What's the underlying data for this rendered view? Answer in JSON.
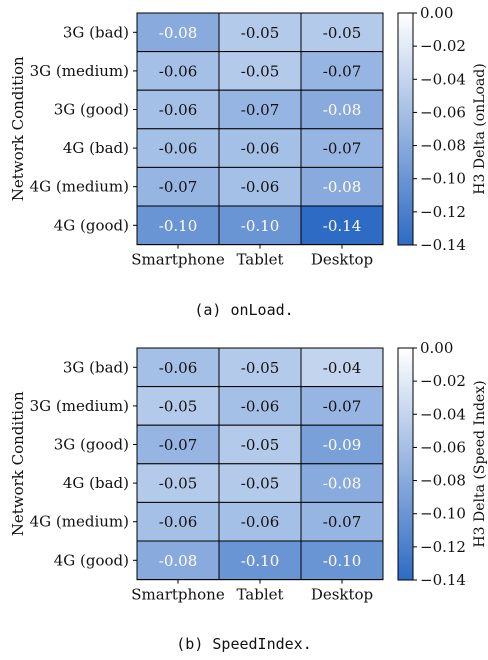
{
  "chart_data": [
    {
      "type": "heatmap",
      "caption": "(a) onLoad.",
      "ylabel": "Network Condition",
      "colorbar_label": "H3 Delta (onLoad)",
      "rows": [
        "3G (bad)",
        "3G (medium)",
        "3G (good)",
        "4G (bad)",
        "4G (medium)",
        "4G (good)"
      ],
      "columns": [
        "Smartphone",
        "Tablet",
        "Desktop"
      ],
      "values": [
        [
          -0.08,
          -0.05,
          -0.05
        ],
        [
          -0.06,
          -0.05,
          -0.07
        ],
        [
          -0.06,
          -0.07,
          -0.08
        ],
        [
          -0.06,
          -0.06,
          -0.07
        ],
        [
          -0.07,
          -0.06,
          -0.08
        ],
        [
          -0.1,
          -0.1,
          -0.14
        ]
      ],
      "labels": [
        [
          "-0.08",
          "-0.05",
          "-0.05"
        ],
        [
          "-0.06",
          "-0.05",
          "-0.07"
        ],
        [
          "-0.06",
          "-0.07",
          "-0.08"
        ],
        [
          "-0.06",
          "-0.06",
          "-0.07"
        ],
        [
          "-0.07",
          "-0.06",
          "-0.08"
        ],
        [
          "-0.10",
          "-0.10",
          "-0.14"
        ]
      ],
      "colorbar_range": [
        -0.14,
        0.0
      ],
      "colorbar_ticks": [
        0.0,
        -0.02,
        -0.04,
        -0.06,
        -0.08,
        -0.1,
        -0.12,
        -0.14
      ],
      "colorbar_tick_labels": [
        "0.00",
        "−0.02",
        "−0.04",
        "−0.06",
        "−0.08",
        "−0.10",
        "−0.12",
        "−0.14"
      ],
      "colormap": {
        "high": "#ffffff",
        "low": "#2e6bc4"
      },
      "legend": "right"
    },
    {
      "type": "heatmap",
      "caption": "(b) SpeedIndex.",
      "ylabel": "Network Condition",
      "colorbar_label": "H3 Delta (Speed Index)",
      "rows": [
        "3G (bad)",
        "3G (medium)",
        "3G (good)",
        "4G (bad)",
        "4G (medium)",
        "4G (good)"
      ],
      "columns": [
        "Smartphone",
        "Tablet",
        "Desktop"
      ],
      "values": [
        [
          -0.06,
          -0.05,
          -0.04
        ],
        [
          -0.05,
          -0.06,
          -0.07
        ],
        [
          -0.07,
          -0.05,
          -0.09
        ],
        [
          -0.05,
          -0.05,
          -0.08
        ],
        [
          -0.06,
          -0.06,
          -0.07
        ],
        [
          -0.08,
          -0.1,
          -0.1
        ]
      ],
      "labels": [
        [
          "-0.06",
          "-0.05",
          "-0.04"
        ],
        [
          "-0.05",
          "-0.06",
          "-0.07"
        ],
        [
          "-0.07",
          "-0.05",
          "-0.09"
        ],
        [
          "-0.05",
          "-0.05",
          "-0.08"
        ],
        [
          "-0.06",
          "-0.06",
          "-0.07"
        ],
        [
          "-0.08",
          "-0.10",
          "-0.10"
        ]
      ],
      "colorbar_range": [
        -0.14,
        0.0
      ],
      "colorbar_ticks": [
        0.0,
        -0.02,
        -0.04,
        -0.06,
        -0.08,
        -0.1,
        -0.12,
        -0.14
      ],
      "colorbar_tick_labels": [
        "0.00",
        "−0.02",
        "−0.04",
        "−0.06",
        "−0.08",
        "−0.10",
        "−0.12",
        "−0.14"
      ],
      "colormap": {
        "high": "#ffffff",
        "low": "#2e6bc4"
      },
      "legend": "right"
    }
  ]
}
